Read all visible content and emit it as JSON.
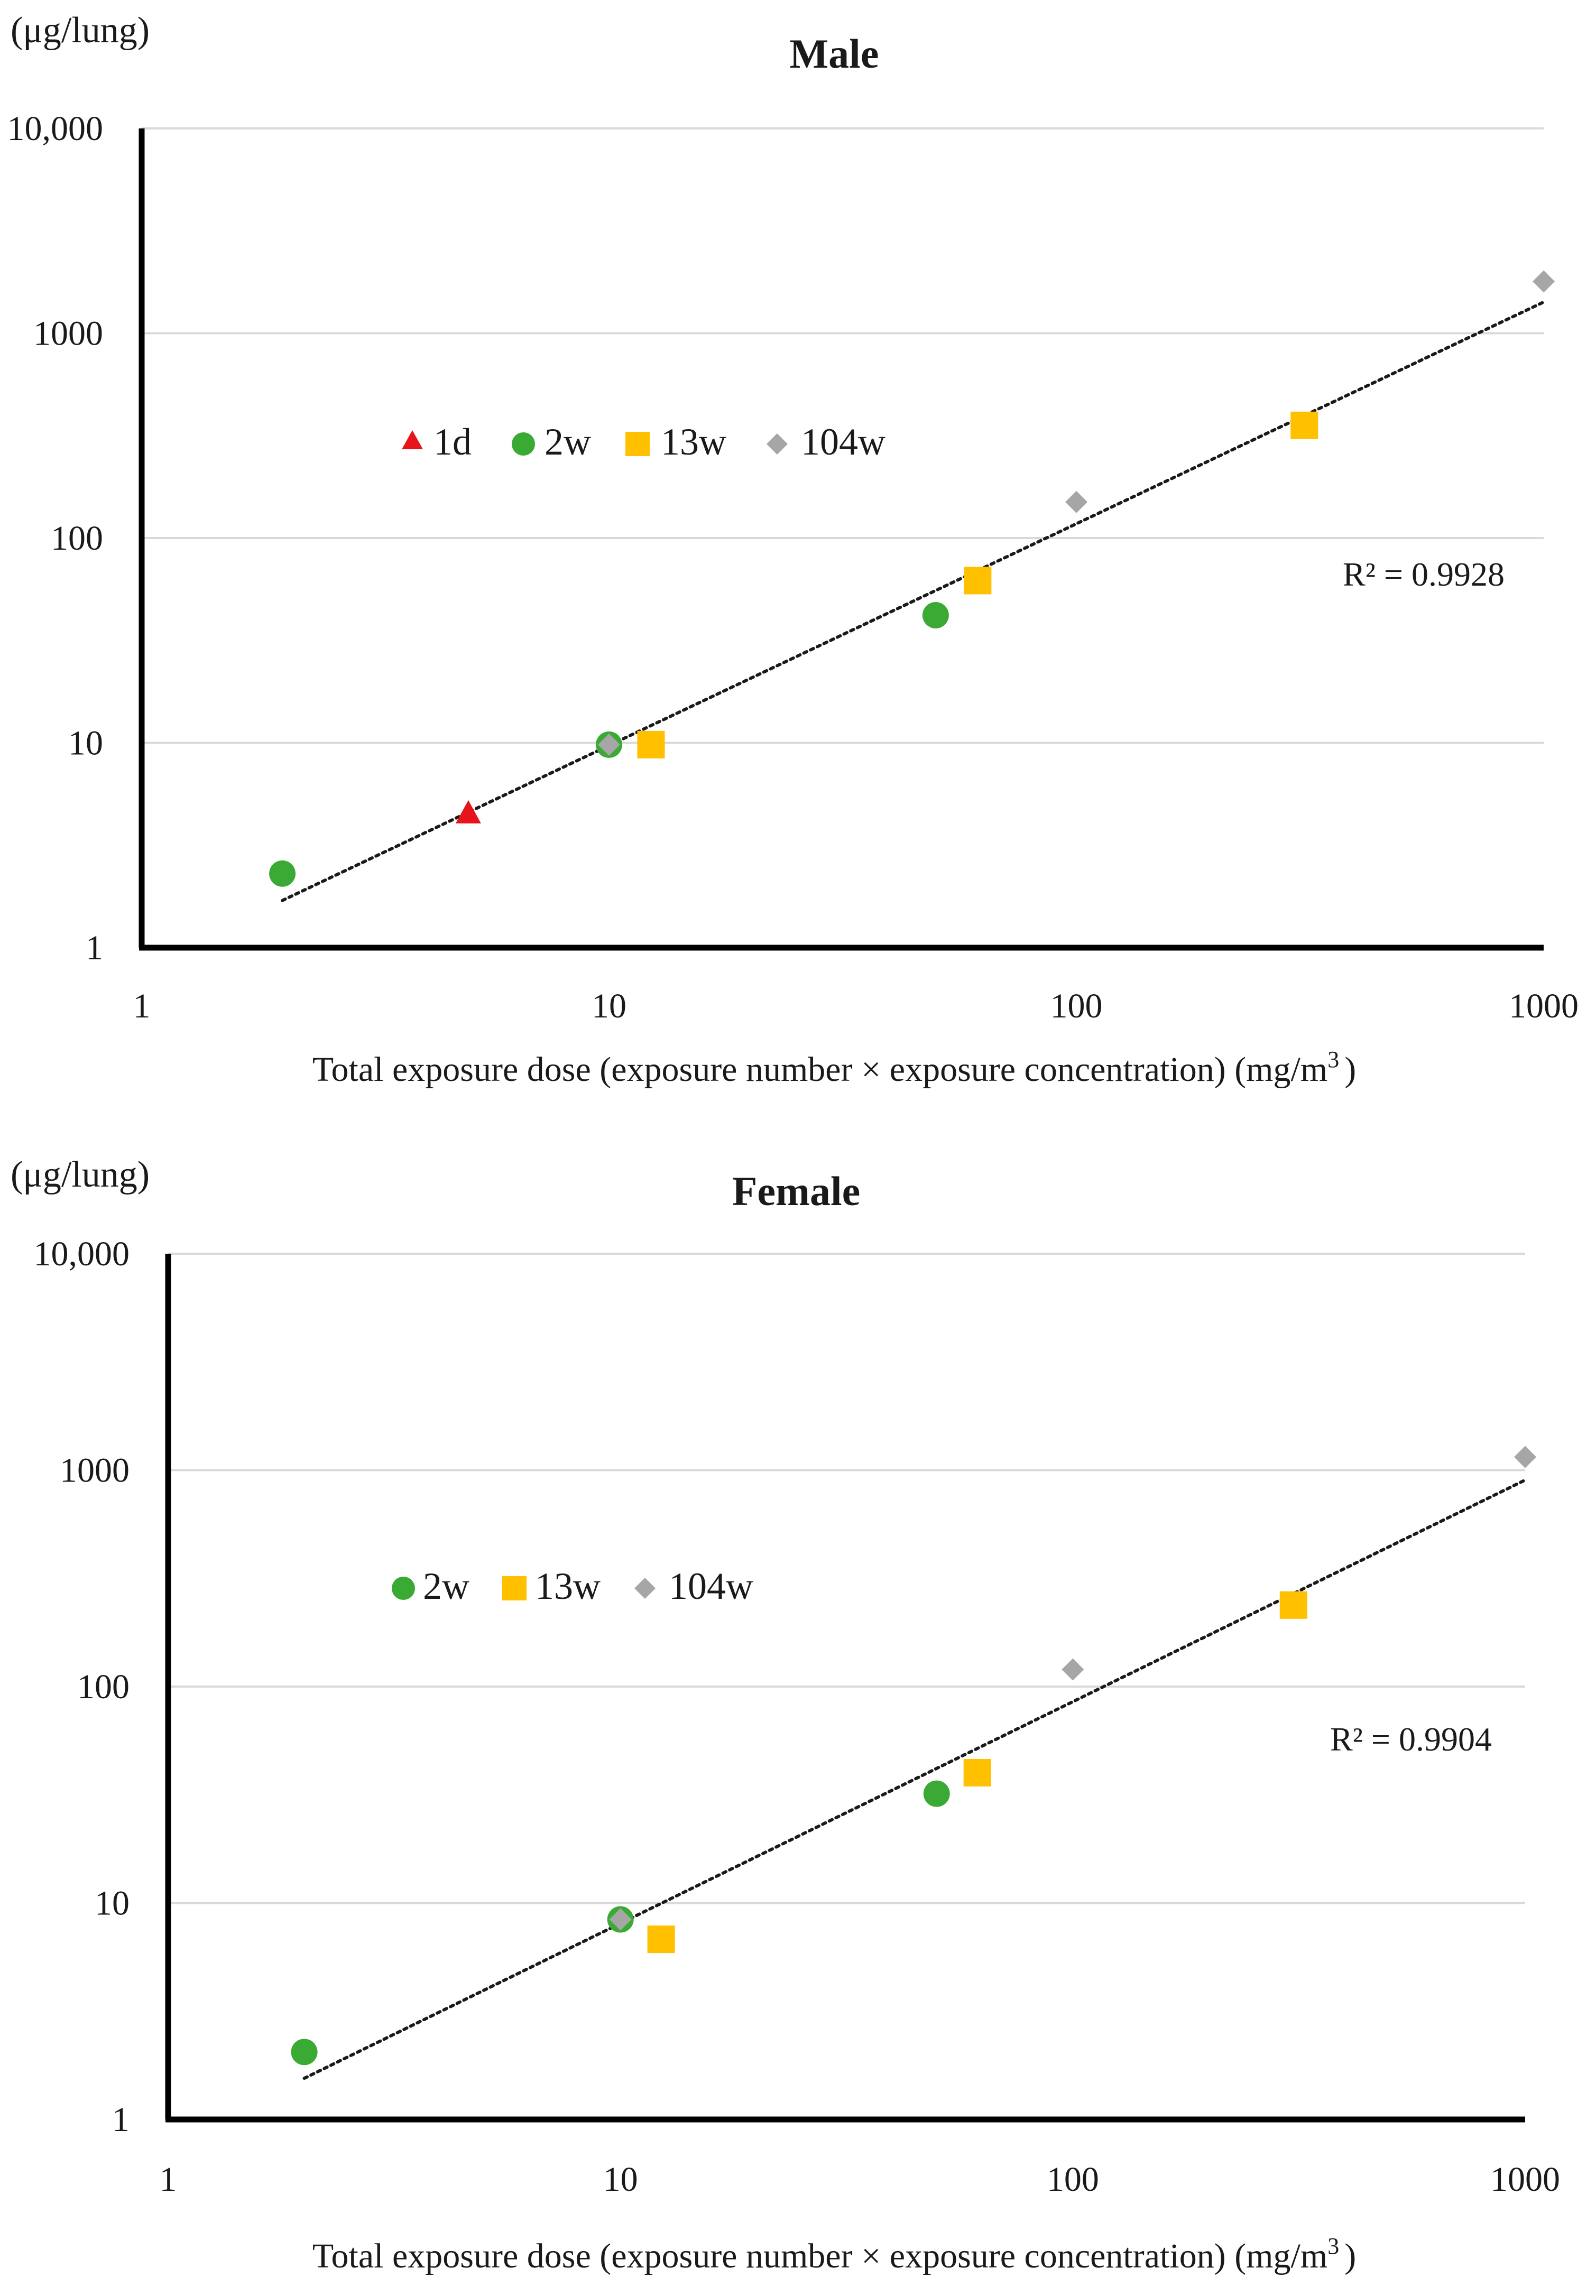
{
  "colors": {
    "t1d": "#e8141c",
    "t2w": "#3aaa35",
    "t13w": "#ffc000",
    "t104w": "#a6a6a6",
    "grid": "#d9d9d9",
    "axis": "#000000",
    "trend": "#1a1a1a"
  },
  "chart_data": [
    {
      "type": "scatter",
      "title": "Male",
      "unit_label": "(μg/lung)",
      "xlabel": "Total exposure dose (exposure number × exposure concentration) (mg/m",
      "xlabel_sup": "3",
      "xlabel_end": ")",
      "x_scale": "log",
      "y_scale": "log",
      "xlim": [
        1,
        1000
      ],
      "ylim": [
        1,
        10000
      ],
      "x_ticks": [
        1,
        10,
        100,
        1000
      ],
      "x_tick_labels": [
        "1",
        "10",
        "100",
        "1000"
      ],
      "y_ticks": [
        1,
        10,
        100,
        1000,
        10000
      ],
      "y_tick_labels": [
        "1",
        "10",
        "100",
        "1000",
        "10,000"
      ],
      "grid": true,
      "legend": [
        "1d",
        "2w",
        "13w",
        "104w"
      ],
      "legend_position": "upper-left",
      "series": [
        {
          "name": "1d",
          "key": "t1d",
          "marker": "triangle",
          "points": [
            [
              5,
              4.5
            ]
          ]
        },
        {
          "name": "2w",
          "key": "t2w",
          "marker": "circle",
          "points": [
            [
              2,
              2.3
            ],
            [
              10,
              9.8
            ],
            [
              50,
              42
            ]
          ]
        },
        {
          "name": "13w",
          "key": "t13w",
          "marker": "square",
          "points": [
            [
              12.3,
              9.8
            ],
            [
              61.5,
              62
            ],
            [
              307.5,
              355
            ]
          ]
        },
        {
          "name": "104w",
          "key": "t104w",
          "marker": "diamond",
          "points": [
            [
              10,
              9.8
            ],
            [
              100,
              150
            ],
            [
              1000,
              1790
            ]
          ]
        }
      ],
      "trendline": {
        "type": "power",
        "from": [
          2,
          1.7
        ],
        "to": [
          1000,
          1420
        ],
        "r2_label": "R² = 0.9928"
      }
    },
    {
      "type": "scatter",
      "title": "Female",
      "unit_label": "(μg/lung)",
      "xlabel": "Total exposure dose (exposure number × exposure concentration) (mg/m",
      "xlabel_sup": "3",
      "xlabel_end": ")",
      "x_scale": "log",
      "y_scale": "log",
      "xlim": [
        1,
        1000
      ],
      "ylim": [
        1,
        10000
      ],
      "x_ticks": [
        1,
        10,
        100,
        1000
      ],
      "x_tick_labels": [
        "1",
        "10",
        "100",
        "1000"
      ],
      "y_ticks": [
        1,
        10,
        100,
        1000,
        10000
      ],
      "y_tick_labels": [
        "1",
        "10",
        "100",
        "1000",
        "10,000"
      ],
      "grid": true,
      "legend": [
        "2w",
        "13w",
        "104w"
      ],
      "legend_position": "upper-left",
      "series": [
        {
          "name": "2w",
          "key": "t2w",
          "marker": "circle",
          "points": [
            [
              2,
              2.05
            ],
            [
              10,
              8.4
            ],
            [
              50,
              32
            ]
          ]
        },
        {
          "name": "13w",
          "key": "t13w",
          "marker": "square",
          "points": [
            [
              12.3,
              6.8
            ],
            [
              61.5,
              40
            ],
            [
              307.5,
              238
            ]
          ]
        },
        {
          "name": "104w",
          "key": "t104w",
          "marker": "diamond",
          "points": [
            [
              10,
              8.4
            ],
            [
              100,
              120
            ],
            [
              1000,
              1150
            ]
          ]
        }
      ],
      "trendline": {
        "type": "power",
        "from": [
          2,
          1.55
        ],
        "to": [
          1000,
          900
        ],
        "r2_label": "R² = 0.9904"
      }
    }
  ]
}
